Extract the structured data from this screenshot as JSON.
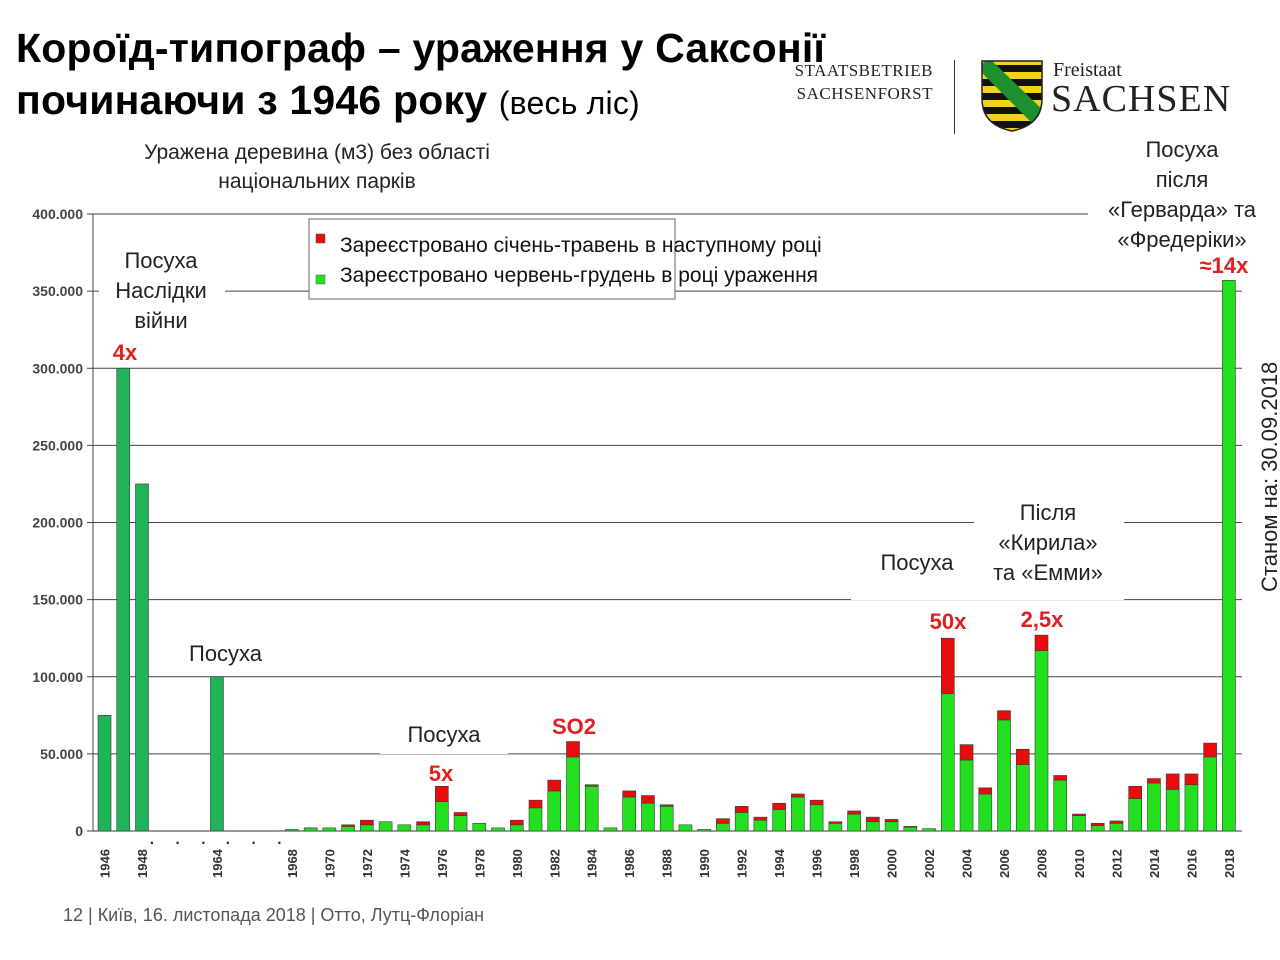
{
  "title": {
    "line1": "Короїд-типограф – ураження у Саксонії",
    "line2": "починаючи з 1946 року",
    "line2_suffix": "(весь ліс)"
  },
  "logo": {
    "staatsbetrieb_line1": "STAATSBETRIEB",
    "staatsbetrieb_line2": "SACHSENFORST",
    "freistaat": "Freistaat",
    "sachsen": "SACHSEN"
  },
  "footer": {
    "text": "12  | Київ,  16. листопада 2018  |  Отто, Лутц-Флоріан"
  },
  "chart_data": {
    "type": "bar",
    "subtitle_lines": [
      "Уражена деревина (м3) без області",
      "національних парків"
    ],
    "ylim": [
      0,
      400000
    ],
    "yticks": [
      0,
      50000,
      100000,
      150000,
      200000,
      250000,
      300000,
      350000,
      400000
    ],
    "ytick_labels": [
      "0",
      "50.000",
      "100.000",
      "150.000",
      "200.000",
      "250.000",
      "300.000",
      "350.000",
      "400.000"
    ],
    "grid": true,
    "legend_position": "top-center",
    "categories": [
      "1946",
      "1947",
      "1948",
      "1964",
      "1968",
      "1969",
      "1970",
      "1971",
      "1972",
      "1973",
      "1974",
      "1975",
      "1976",
      "1977",
      "1978",
      "1979",
      "1980",
      "1981",
      "1982",
      "1983",
      "1984",
      "1985",
      "1986",
      "1987",
      "1988",
      "1989",
      "1990",
      "1991",
      "1992",
      "1993",
      "1994",
      "1995",
      "1996",
      "1997",
      "1998",
      "1999",
      "2000",
      "2001",
      "2002",
      "2003",
      "2004",
      "2005",
      "2006",
      "2007",
      "2008",
      "2009",
      "2010",
      "2011",
      "2012",
      "2013",
      "2014",
      "2015",
      "2016",
      "2017",
      "2018"
    ],
    "xtick_labels": [
      "1946",
      "1948",
      "1964",
      "1968",
      "1970",
      "1972",
      "1974",
      "1976",
      "1978",
      "1980",
      "1982",
      "1984",
      "1986",
      "1988",
      "1990",
      "1992",
      "1994",
      "1996",
      "1998",
      "2000",
      "2002",
      "2004",
      "2006",
      "2008",
      "2010",
      "2012",
      "2014",
      "2016",
      "2018"
    ],
    "axis_gaps": [
      "· · ·",
      "· · ·"
    ],
    "series": [
      {
        "name": "Зареєстровано червень-грудень в році ураження",
        "color": "#22e01e",
        "values": [
          75000,
          300000,
          225000,
          100000,
          1000,
          2000,
          2000,
          3000,
          4000,
          6000,
          4000,
          4000,
          19000,
          10000,
          5000,
          2000,
          4000,
          15000,
          26000,
          48000,
          29000,
          2000,
          22000,
          18000,
          16000,
          4000,
          1000,
          5000,
          12000,
          7000,
          14000,
          22000,
          17000,
          5000,
          11000,
          6000,
          6000,
          2500,
          1500,
          89000,
          46000,
          24000,
          72000,
          43000,
          117000,
          33000,
          10000,
          3500,
          5000,
          21000,
          31000,
          27000,
          30000,
          48000,
          357000
        ]
      },
      {
        "name": "Зареєстровано січень-травень в наступному році",
        "color": "#e80c0c",
        "values": [
          0,
          0,
          0,
          0,
          0,
          0.5,
          0,
          1000,
          3000,
          0,
          0,
          2000,
          10000,
          2000,
          0,
          0,
          3000,
          5000,
          7000,
          10000,
          1000,
          0,
          4000,
          5000,
          1000,
          0,
          0,
          3000,
          4000,
          2000,
          4000,
          2000,
          3000,
          1000,
          2000,
          3000,
          1500,
          500,
          0,
          36000,
          10000,
          4000,
          6000,
          10000,
          10000,
          3000,
          1000,
          1500,
          1500,
          8000,
          3000,
          10000,
          7000,
          9000,
          0
        ]
      }
    ],
    "pre_green_color": "#1fb45a",
    "annotations": [
      {
        "text": "Посуха\nНаслідки\nвійни"
      },
      {
        "text": "4x"
      },
      {
        "text": "Посуха"
      },
      {
        "text": "Посуха"
      },
      {
        "text": "5x"
      },
      {
        "text": "SO2"
      },
      {
        "text": "Посуха"
      },
      {
        "text": "50x"
      },
      {
        "text": "Після\n«Кирила»\nта «Емми»"
      },
      {
        "text": "2,5x"
      },
      {
        "text": "Посуха\nпісля\n«Герварда» та\n«Фредеріки»"
      },
      {
        "text": "≈14x"
      },
      {
        "text": "Станом на: 30.09.2018"
      }
    ]
  }
}
